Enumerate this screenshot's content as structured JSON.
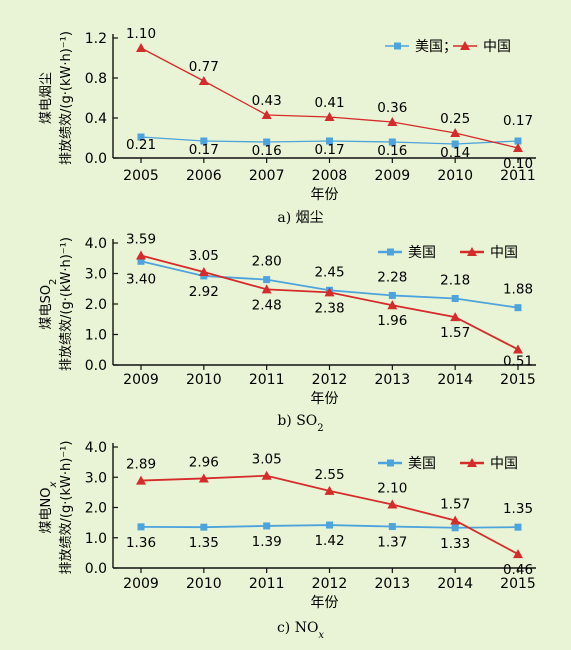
{
  "colors": {
    "usa": "#4da3dc",
    "china": "#d62b2b"
  },
  "chart_data": [
    {
      "type": "line",
      "caption": "a) 烟尘",
      "xlabel": "年份",
      "ylabel_line1": "煤电烟尘",
      "ylabel_line2": "排放绩效/(g·(kW·h)⁻¹)",
      "legend": "top-right",
      "categories": [
        "2005",
        "2006",
        "2007",
        "2008",
        "2009",
        "2010",
        "2011"
      ],
      "ylim": [
        0,
        1.2
      ],
      "yticks": [
        "0.0",
        "0.4",
        "0.8",
        "1.2"
      ],
      "series": [
        {
          "name": "美国；",
          "key": "usa",
          "values": [
            0.21,
            0.17,
            0.16,
            0.17,
            0.16,
            0.14,
            0.17
          ],
          "labels": [
            "0.21",
            "0.17",
            "0.16",
            "0.17",
            "0.16",
            "0.14",
            "0.17"
          ]
        },
        {
          "name": "中国",
          "key": "china",
          "values": [
            1.1,
            0.77,
            0.43,
            0.41,
            0.36,
            0.25,
            0.1
          ],
          "labels": [
            "1.10",
            "0.77",
            "0.43",
            "0.41",
            "0.36",
            "0.25",
            "0.10"
          ]
        }
      ]
    },
    {
      "type": "line",
      "caption_main": "b) SO",
      "caption_sub": "2",
      "xlabel": "年份",
      "ylabel_line1_main": "煤电SO",
      "ylabel_line1_sub": "2",
      "ylabel_line2": "排放绩效/(g·(kW·h)⁻¹)",
      "legend": "top-right",
      "categories": [
        "2009",
        "2010",
        "2011",
        "2012",
        "2013",
        "2014",
        "2015"
      ],
      "ylim": [
        0,
        4.0
      ],
      "yticks": [
        "0.0",
        "1.0",
        "2.0",
        "3.0",
        "4.0"
      ],
      "series": [
        {
          "name": "美国",
          "key": "usa",
          "values": [
            3.4,
            2.92,
            2.8,
            2.45,
            2.28,
            2.18,
            1.88
          ],
          "labels": [
            "3.40",
            "2.92",
            "2.80",
            "2.45",
            "2.28",
            "2.18",
            "1.88"
          ]
        },
        {
          "name": "中国",
          "key": "china",
          "values": [
            3.59,
            3.05,
            2.48,
            2.38,
            1.96,
            1.57,
            0.51
          ],
          "labels": [
            "3.59",
            "3.05",
            "2.48",
            "2.38",
            "1.96",
            "1.57",
            "0.51"
          ]
        }
      ]
    },
    {
      "type": "line",
      "caption_main": "c) NO",
      "caption_sub": "x",
      "xlabel": "年份",
      "ylabel_line1_main": "煤电NO",
      "ylabel_line1_sub": "x",
      "ylabel_line2": "排放绩效/(g·(kW·h)⁻¹)",
      "legend": "top-right",
      "categories": [
        "2009",
        "2010",
        "2011",
        "2012",
        "2013",
        "2014",
        "2015"
      ],
      "ylim": [
        0,
        4.0
      ],
      "yticks": [
        "0.0",
        "1.0",
        "2.0",
        "3.0",
        "4.0"
      ],
      "series": [
        {
          "name": "美国",
          "key": "usa",
          "values": [
            1.36,
            1.35,
            1.39,
            1.42,
            1.37,
            1.33,
            1.35
          ],
          "labels": [
            "1.36",
            "1.35",
            "1.39",
            "1.42",
            "1.37",
            "1.33",
            "1.35"
          ]
        },
        {
          "name": "中国",
          "key": "china",
          "values": [
            2.89,
            2.96,
            3.05,
            2.55,
            2.1,
            1.57,
            0.46
          ],
          "labels": [
            "2.89",
            "2.96",
            "3.05",
            "2.55",
            "2.10",
            "1.57",
            "0.46"
          ]
        }
      ]
    }
  ]
}
